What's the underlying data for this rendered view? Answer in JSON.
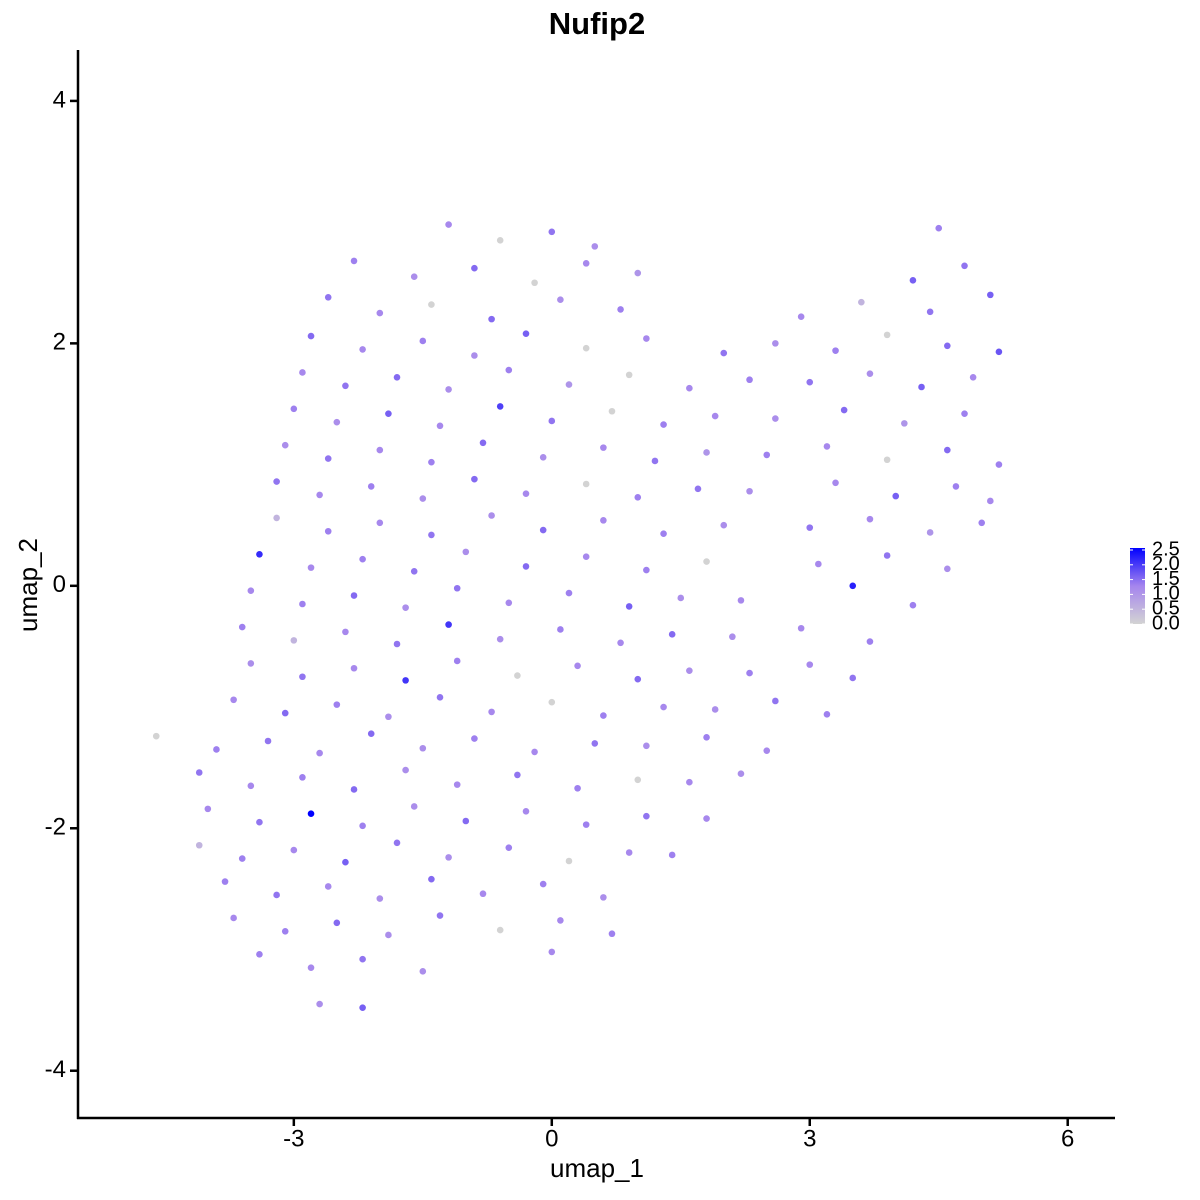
{
  "chart_data": {
    "type": "scatter",
    "title": "Nufip2",
    "x_label": "umap_1",
    "y_label": "umap_2",
    "xlim": [
      -5.51,
      6.55
    ],
    "ylim": [
      -4.39,
      4.42
    ],
    "xticks": [
      -3,
      0,
      3,
      6
    ],
    "yticks": [
      -4,
      -2,
      0,
      2,
      4
    ],
    "colorbar": {
      "lim": [
        0,
        2.5
      ],
      "colors": [
        "#d3d3d3",
        "#a585ee",
        "#0000ff"
      ],
      "ticks": [
        {
          "value": 0,
          "label": "0.0"
        },
        0.5,
        {
          "value": 1,
          "label": "1.0"
        },
        1.5,
        {
          "value": 2,
          "label": "2.0"
        },
        2.5
      ]
    },
    "x": [
      -1.2,
      -0.6,
      0,
      0.5,
      4.5,
      -2.3,
      -1.6,
      -0.9,
      -0.2,
      0.4,
      1.0,
      4.2,
      4.8,
      -2.6,
      -2.0,
      -1.4,
      -0.7,
      0.1,
      0.8,
      2.9,
      3.6,
      4.4,
      5.1,
      -2.8,
      -2.2,
      -1.5,
      -0.9,
      -0.3,
      0.4,
      1.1,
      2.0,
      2.6,
      3.3,
      3.9,
      4.6,
      5.2,
      -2.9,
      -2.4,
      -1.8,
      -1.2,
      -0.5,
      0.2,
      0.9,
      1.6,
      2.3,
      3.0,
      3.7,
      4.3,
      4.9,
      -3.0,
      -2.5,
      -1.9,
      -1.3,
      -0.6,
      0.0,
      0.7,
      1.3,
      1.9,
      2.6,
      3.4,
      4.1,
      4.8,
      -3.1,
      -2.6,
      -2.0,
      -1.4,
      -0.8,
      -0.1,
      0.6,
      1.2,
      1.8,
      2.5,
      3.2,
      3.9,
      4.6,
      5.2,
      -3.2,
      -2.7,
      -2.1,
      -1.5,
      -0.9,
      -0.3,
      0.4,
      1.0,
      1.7,
      2.3,
      3.3,
      4.0,
      4.7,
      5.1,
      -3.2,
      -2.6,
      -2.0,
      -1.4,
      -0.7,
      -0.1,
      0.6,
      1.3,
      2.0,
      3.0,
      3.7,
      4.4,
      5.0,
      -3.4,
      -2.8,
      -2.2,
      -1.6,
      -1.0,
      -0.3,
      0.4,
      1.1,
      1.8,
      3.1,
      3.9,
      4.6,
      -3.5,
      -2.9,
      -2.3,
      -1.7,
      -1.1,
      -0.5,
      0.2,
      0.9,
      1.5,
      2.2,
      3.5,
      4.2,
      -3.6,
      -3.0,
      -2.4,
      -1.8,
      -1.2,
      -0.6,
      0.1,
      0.8,
      1.4,
      2.1,
      2.9,
      3.7,
      -3.5,
      -2.9,
      -2.3,
      -1.7,
      -1.1,
      -0.4,
      0.3,
      1.0,
      1.6,
      2.3,
      3.0,
      3.5,
      -3.7,
      -3.1,
      -2.5,
      -1.9,
      -1.3,
      -0.7,
      0.0,
      0.6,
      1.3,
      1.9,
      2.6,
      3.2,
      -4.6,
      -3.9,
      -3.3,
      -2.7,
      -2.1,
      -1.5,
      -0.9,
      -0.2,
      0.5,
      1.1,
      1.8,
      2.5,
      -4.1,
      -3.5,
      -2.9,
      -2.3,
      -1.7,
      -1.1,
      -0.4,
      0.3,
      1.0,
      1.6,
      2.2,
      -4.0,
      -3.4,
      -2.8,
      -2.2,
      -1.6,
      -1.0,
      -0.3,
      0.4,
      1.1,
      1.8,
      -4.1,
      -3.6,
      -3.0,
      -2.4,
      -1.8,
      -1.2,
      -0.5,
      0.2,
      0.9,
      1.4,
      -3.8,
      -3.2,
      -2.6,
      -2.0,
      -1.4,
      -0.8,
      -0.1,
      0.6,
      -3.7,
      -3.1,
      -2.5,
      -1.9,
      -1.3,
      -0.6,
      0.1,
      0.7,
      -3.4,
      -2.8,
      -2.2,
      -1.5,
      0.0,
      -2.7,
      -2.2
    ],
    "y": [
      2.98,
      2.85,
      2.92,
      2.8,
      2.95,
      2.68,
      2.55,
      2.62,
      2.5,
      2.66,
      2.58,
      2.52,
      2.64,
      2.38,
      2.25,
      2.32,
      2.2,
      2.36,
      2.28,
      2.22,
      2.34,
      2.26,
      2.4,
      2.06,
      1.95,
      2.02,
      1.9,
      2.08,
      1.96,
      2.04,
      1.92,
      2.0,
      1.94,
      2.07,
      1.98,
      1.93,
      1.76,
      1.65,
      1.72,
      1.62,
      1.78,
      1.66,
      1.74,
      1.63,
      1.7,
      1.68,
      1.75,
      1.64,
      1.72,
      1.46,
      1.35,
      1.42,
      1.32,
      1.48,
      1.36,
      1.44,
      1.33,
      1.4,
      1.38,
      1.45,
      1.34,
      1.42,
      1.16,
      1.05,
      1.12,
      1.02,
      1.18,
      1.06,
      1.14,
      1.03,
      1.1,
      1.08,
      1.15,
      1.04,
      1.12,
      1.0,
      0.86,
      0.75,
      0.82,
      0.72,
      0.88,
      0.76,
      0.84,
      0.73,
      0.8,
      0.78,
      0.85,
      0.74,
      0.82,
      0.7,
      0.56,
      0.45,
      0.52,
      0.42,
      0.58,
      0.46,
      0.54,
      0.43,
      0.5,
      0.48,
      0.55,
      0.44,
      0.52,
      0.26,
      0.15,
      0.22,
      0.12,
      0.28,
      0.16,
      0.24,
      0.13,
      0.2,
      0.18,
      0.25,
      0.14,
      -0.04,
      -0.15,
      -0.08,
      -0.18,
      -0.02,
      -0.14,
      -0.06,
      -0.17,
      -0.1,
      -0.12,
      0.0,
      -0.16,
      -0.34,
      -0.45,
      -0.38,
      -0.48,
      -0.32,
      -0.44,
      -0.36,
      -0.47,
      -0.4,
      -0.42,
      -0.35,
      -0.46,
      -0.64,
      -0.75,
      -0.68,
      -0.78,
      -0.62,
      -0.74,
      -0.66,
      -0.77,
      -0.7,
      -0.72,
      -0.65,
      -0.76,
      -0.94,
      -1.05,
      -0.98,
      -1.08,
      -0.92,
      -1.04,
      -0.96,
      -1.07,
      -1.0,
      -1.02,
      -0.95,
      -1.06,
      -1.24,
      -1.35,
      -1.28,
      -1.38,
      -1.22,
      -1.34,
      -1.26,
      -1.37,
      -1.3,
      -1.32,
      -1.25,
      -1.36,
      -1.54,
      -1.65,
      -1.58,
      -1.68,
      -1.52,
      -1.64,
      -1.56,
      -1.67,
      -1.6,
      -1.62,
      -1.55,
      -1.84,
      -1.95,
      -1.88,
      -1.98,
      -1.82,
      -1.94,
      -1.86,
      -1.97,
      -1.9,
      -1.92,
      -2.14,
      -2.25,
      -2.18,
      -2.28,
      -2.12,
      -2.24,
      -2.16,
      -2.27,
      -2.2,
      -2.22,
      -2.44,
      -2.55,
      -2.48,
      -2.58,
      -2.42,
      -2.54,
      -2.46,
      -2.57,
      -2.74,
      -2.85,
      -2.78,
      -2.88,
      -2.72,
      -2.84,
      -2.76,
      -2.87,
      -3.04,
      -3.15,
      -3.08,
      -3.18,
      -3.02,
      -3.45,
      -3.48
    ],
    "values": [
      1.2,
      0,
      1.4,
      1.1,
      1.3,
      1.3,
      1.1,
      1.5,
      0,
      1.2,
      1.0,
      1.6,
      1.4,
      1.4,
      1.2,
      0,
      1.5,
      1.1,
      1.3,
      1.2,
      0.5,
      1.4,
      1.6,
      1.5,
      1.2,
      1.3,
      1.1,
      1.6,
      0,
      1.2,
      1.4,
      1.1,
      1.3,
      0,
      1.5,
      1.7,
      1.2,
      1.4,
      1.5,
      1.1,
      1.3,
      1.0,
      0,
      1.2,
      1.3,
      1.4,
      1.1,
      1.6,
      1.2,
      1.3,
      1.1,
      1.6,
      1.2,
      1.9,
      1.4,
      0,
      1.3,
      1.2,
      1.1,
      1.5,
      1.0,
      1.3,
      1.1,
      1.4,
      1.2,
      1.3,
      1.5,
      1.1,
      1.2,
      1.4,
      1.0,
      1.3,
      1.2,
      0,
      1.5,
      1.3,
      1.4,
      1.2,
      1.3,
      1.1,
      1.5,
      1.2,
      0,
      1.3,
      1.4,
      1.1,
      1.2,
      1.6,
      1.3,
      1.2,
      0.5,
      1.3,
      1.2,
      1.4,
      1.1,
      1.5,
      1.2,
      1.3,
      1.1,
      1.4,
      1.2,
      1.0,
      1.3,
      2.1,
      1.2,
      1.3,
      1.4,
      1.1,
      1.5,
      1.2,
      1.3,
      0,
      1.2,
      1.4,
      1.1,
      1.2,
      1.3,
      1.5,
      1.1,
      1.4,
      1.2,
      1.3,
      1.6,
      1.1,
      1.2,
      2.2,
      1.3,
      1.3,
      0.5,
      1.2,
      1.4,
      2.0,
      1.1,
      1.3,
      1.2,
      1.5,
      1.1,
      1.2,
      1.3,
      1.1,
      1.4,
      1.2,
      2.0,
      1.3,
      0,
      1.2,
      1.5,
      1.1,
      1.3,
      1.2,
      1.4,
      1.2,
      1.5,
      1.3,
      1.1,
      1.4,
      1.2,
      0,
      1.3,
      1.2,
      1.1,
      1.4,
      1.3,
      0,
      1.3,
      1.4,
      1.2,
      1.5,
      1.1,
      1.3,
      1.2,
      1.4,
      1.1,
      1.3,
      1.2,
      1.4,
      1.2,
      1.3,
      1.5,
      1.1,
      1.2,
      1.4,
      1.3,
      0,
      1.2,
      1.1,
      1.2,
      1.4,
      2.5,
      1.3,
      1.1,
      1.5,
      1.2,
      1.3,
      1.4,
      1.2,
      0.5,
      1.3,
      1.2,
      1.6,
      1.4,
      1.1,
      1.3,
      0,
      1.2,
      1.3,
      1.3,
      1.4,
      1.2,
      1.1,
      1.5,
      1.2,
      1.3,
      1.1,
      1.2,
      1.3,
      1.5,
      1.1,
      1.4,
      0,
      1.2,
      1.3,
      1.3,
      1.2,
      1.4,
      1.1,
      1.2,
      1.1,
      1.6
    ]
  }
}
